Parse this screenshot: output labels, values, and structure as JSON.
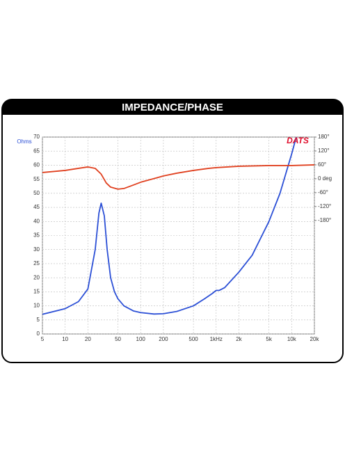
{
  "chart_data": {
    "type": "line",
    "title": "IMPEDANCE/PHASE",
    "y_label": "Ohms",
    "logo": "DATS",
    "xlog": true,
    "grid": true,
    "xlim": [
      5,
      20000
    ],
    "xticks": [
      5,
      10,
      20,
      50,
      100,
      200,
      500,
      {
        "value": 1000,
        "label": "1kHz"
      },
      {
        "value": 2000,
        "label": "2k"
      },
      {
        "value": 5000,
        "label": "5k"
      },
      {
        "value": 10000,
        "label": "10k"
      },
      {
        "value": 20000,
        "label": "20k"
      }
    ],
    "ylim": [
      0,
      70
    ],
    "yticks": [
      0,
      5,
      10,
      15,
      20,
      25,
      30,
      35,
      40,
      45,
      50,
      55,
      60,
      65,
      70
    ],
    "y2lim": [
      -670,
      180
    ],
    "y2ticks": [
      {
        "value": 180,
        "label": "180°"
      },
      {
        "value": 120,
        "label": "120°"
      },
      {
        "value": 60,
        "label": "60°"
      },
      {
        "value": 0,
        "label": "0 deg"
      },
      {
        "value": -60,
        "label": "-60°"
      },
      {
        "value": -120,
        "label": "-120°"
      },
      {
        "value": -180,
        "label": "-180°"
      }
    ],
    "series": [
      {
        "name": "Impedance",
        "color": "#2b4fd6",
        "x": [
          5,
          10,
          15,
          20,
          25,
          28,
          30,
          33,
          36,
          40,
          45,
          50,
          60,
          80,
          100,
          150,
          200,
          300,
          500,
          700,
          900,
          1000,
          1100,
          1300,
          2000,
          3000,
          5000,
          7000,
          10000,
          11500
        ],
        "values": [
          7,
          9,
          11.5,
          16,
          30,
          43,
          46.5,
          42,
          30,
          20,
          15,
          12.5,
          10,
          8.2,
          7.6,
          7.1,
          7.2,
          8,
          10,
          12.5,
          14.5,
          15.5,
          15.5,
          16.5,
          22,
          28,
          40,
          50,
          64,
          70
        ]
      },
      {
        "name": "Phase",
        "color": "#e0401f",
        "axis": "y2",
        "x": [
          5,
          10,
          15,
          20,
          25,
          30,
          35,
          40,
          50,
          60,
          80,
          100,
          200,
          300,
          500,
          800,
          1000,
          2000,
          5000,
          10000,
          20000
        ],
        "values": [
          27,
          36,
          45,
          51,
          45,
          20,
          -18,
          -36,
          -45,
          -42,
          -27,
          -15,
          12,
          24,
          36,
          45,
          48,
          54,
          57,
          57,
          60
        ]
      }
    ]
  }
}
